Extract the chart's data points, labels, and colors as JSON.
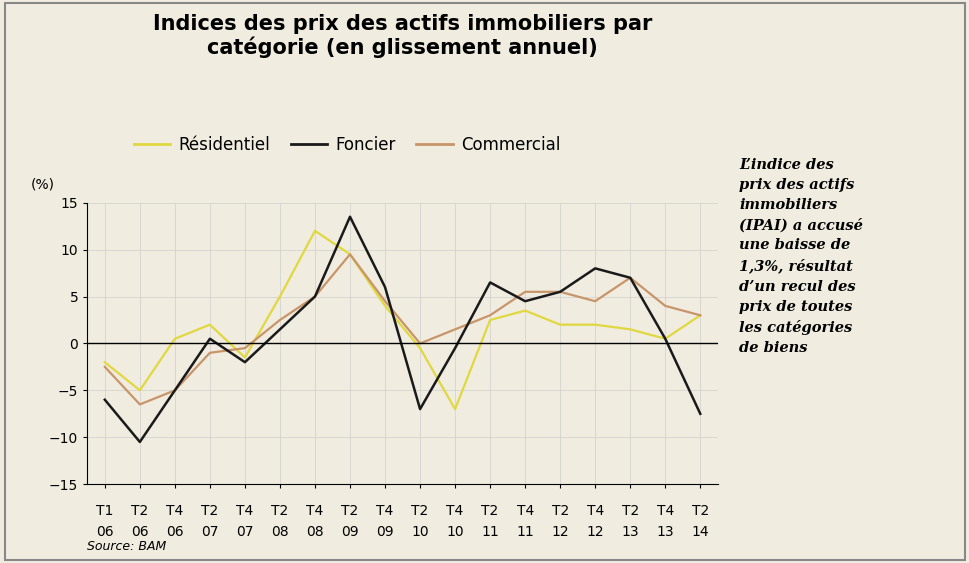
{
  "title_line1": "Indices des prix des actifs immobiliers par",
  "title_line2": "catégorie (en glissement annuel)",
  "ylabel": "(%)",
  "source": "Source: BAM",
  "annotation": "L’indice des\nprix des actifs\nimmobiliers\n(IPAI) a accusé\nune baisse de\n1,3%, résultat\nd’un recul des\nprix de toutes\nles catégories\nde biens",
  "x_labels_top": [
    "T1",
    "T2",
    "T4",
    "T2",
    "T4",
    "T2",
    "T4",
    "T2",
    "T4",
    "T2",
    "T4",
    "T2",
    "T4",
    "T2",
    "T4",
    "T2",
    "T4",
    "T2"
  ],
  "x_labels_bot": [
    "06",
    "06",
    "06",
    "07",
    "07",
    "08",
    "08",
    "09",
    "09",
    "10",
    "10",
    "11",
    "11",
    "12",
    "12",
    "13",
    "13",
    "14"
  ],
  "ylim": [
    -15,
    15
  ],
  "yticks": [
    -15,
    -10,
    -5,
    0,
    5,
    10,
    15
  ],
  "residentiel": [
    -2.0,
    -5.0,
    0.5,
    2.0,
    -1.5,
    5.0,
    12.0,
    9.5,
    4.0,
    -0.5,
    -7.0,
    2.5,
    3.5,
    2.0,
    2.0,
    1.5,
    0.5,
    3.0
  ],
  "foncier": [
    -6.0,
    -10.5,
    -5.0,
    0.5,
    -2.0,
    1.5,
    5.0,
    13.5,
    6.0,
    -7.0,
    -0.5,
    6.5,
    4.5,
    5.5,
    8.0,
    7.0,
    0.5,
    -7.5
  ],
  "commercial": [
    -2.5,
    -6.5,
    -5.0,
    -1.0,
    -0.5,
    2.5,
    5.0,
    9.5,
    4.5,
    0.0,
    1.5,
    3.0,
    5.5,
    5.5,
    4.5,
    7.0,
    4.0,
    3.0
  ],
  "residentiel_color": "#e0d840",
  "foncier_color": "#1a1a1a",
  "commercial_color": "#c8956a",
  "background_color": "#f0ece0",
  "plot_bg_color": "#f0ece0",
  "grid_color": "#c8c8c8",
  "border_color": "#888888",
  "title_fontsize": 15,
  "legend_fontsize": 12,
  "tick_fontsize": 10,
  "annotation_fontsize": 10.5,
  "source_fontsize": 9
}
